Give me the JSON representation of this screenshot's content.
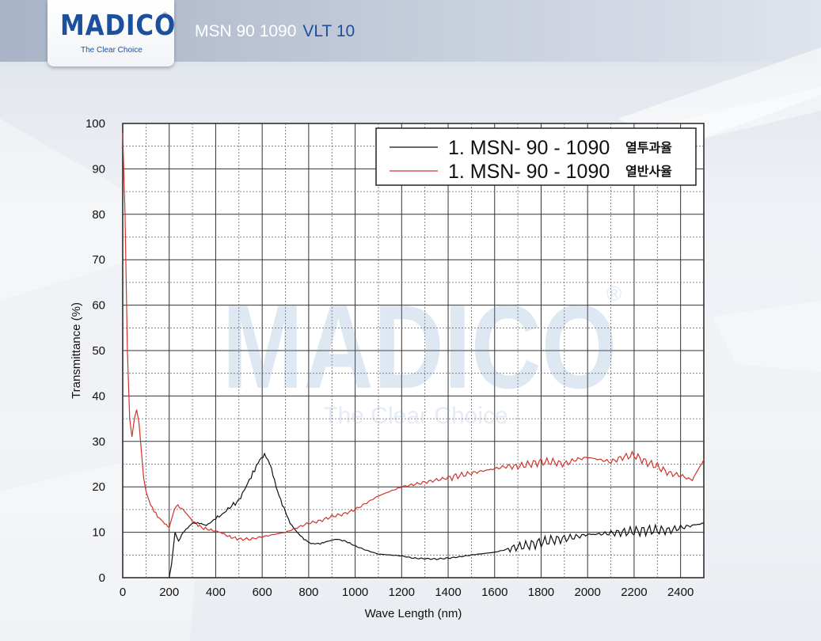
{
  "header": {
    "logo_text": "MADICO",
    "logo_registered": "®",
    "logo_tagline": "The Clear Choice",
    "product": "MSN 90 1090",
    "vlt": "VLT 10"
  },
  "colors": {
    "brand_blue": "#1c4f9c",
    "transmittance_line": "#111111",
    "reflectance_line": "#d2322d"
  },
  "chart_data": {
    "type": "line",
    "xlabel": "Wave Length (nm)",
    "ylabel": "Transmittance (%)",
    "xlim": [
      0,
      2500
    ],
    "ylim": [
      0,
      100
    ],
    "xticks": [
      0,
      200,
      400,
      600,
      800,
      1000,
      1200,
      1400,
      1600,
      1800,
      2000,
      2200,
      2400
    ],
    "yticks": [
      0,
      10,
      20,
      30,
      40,
      50,
      60,
      70,
      80,
      90,
      100
    ],
    "grid": true,
    "legend_position": "top-right",
    "watermark": "MADICO",
    "watermark_registered": "®",
    "watermark_tagline": "The Clear Choice",
    "series": [
      {
        "name": "1. MSN- 90 - 1090",
        "label_suffix": "열투과율",
        "color": "#111111",
        "x": [
          200,
          210,
          225,
          240,
          260,
          280,
          300,
          330,
          360,
          400,
          430,
          460,
          500,
          530,
          560,
          590,
          610,
          625,
          640,
          660,
          680,
          700,
          720,
          750,
          780,
          810,
          850,
          880,
          920,
          960,
          1000,
          1050,
          1100,
          1150,
          1200,
          1250,
          1300,
          1350,
          1400,
          1450,
          1500,
          1550,
          1600,
          1650,
          1700,
          1750,
          1800,
          1850,
          1900,
          1950,
          2000,
          2050,
          2100,
          2150,
          2200,
          2250,
          2300,
          2350,
          2400,
          2450,
          2500
        ],
        "y": [
          0,
          3,
          10,
          8,
          10,
          11,
          12,
          12,
          11.5,
          13,
          14,
          15.5,
          17,
          20,
          23,
          26,
          27,
          26,
          24,
          20,
          17,
          14.5,
          12,
          10,
          8.5,
          7.5,
          7.5,
          8,
          8.5,
          8,
          7,
          6,
          5.2,
          5,
          4.8,
          4.3,
          4.2,
          4.1,
          4.3,
          4.6,
          5,
          5.3,
          5.6,
          6.2,
          6.8,
          7.2,
          7.8,
          8.3,
          8.6,
          9,
          9.5,
          9.6,
          9.8,
          10,
          10.2,
          10.4,
          10.5,
          10.4,
          11,
          11.5,
          12
        ]
      },
      {
        "name": "1. MSN- 90 - 1090",
        "label_suffix": "열반사율",
        "color": "#d2322d",
        "x": [
          0,
          10,
          20,
          30,
          40,
          50,
          60,
          70,
          80,
          90,
          100,
          120,
          150,
          180,
          200,
          210,
          230,
          260,
          300,
          340,
          380,
          420,
          460,
          500,
          550,
          600,
          650,
          700,
          750,
          800,
          850,
          900,
          950,
          1000,
          1050,
          1100,
          1150,
          1200,
          1250,
          1300,
          1350,
          1400,
          1450,
          1500,
          1550,
          1600,
          1650,
          1700,
          1750,
          1800,
          1850,
          1900,
          1950,
          2000,
          2050,
          2100,
          2150,
          2200,
          2250,
          2300,
          2350,
          2400,
          2450,
          2500
        ],
        "y": [
          98,
          80,
          50,
          35,
          31,
          35,
          37,
          34,
          28,
          22,
          19,
          16,
          13.5,
          12,
          11,
          13,
          16,
          15,
          12.5,
          11,
          10.5,
          10,
          9,
          8.5,
          8.5,
          9,
          9.5,
          10,
          11,
          12,
          12.5,
          13.5,
          14,
          15,
          16.5,
          18,
          19,
          20,
          20.5,
          21,
          21.5,
          22,
          22.5,
          23,
          23.5,
          24,
          24.5,
          24.5,
          25,
          25.5,
          25.5,
          25,
          26,
          26.5,
          26,
          25.5,
          26.5,
          27,
          25.5,
          24.5,
          23,
          22.5,
          21.5,
          26
        ]
      }
    ]
  }
}
